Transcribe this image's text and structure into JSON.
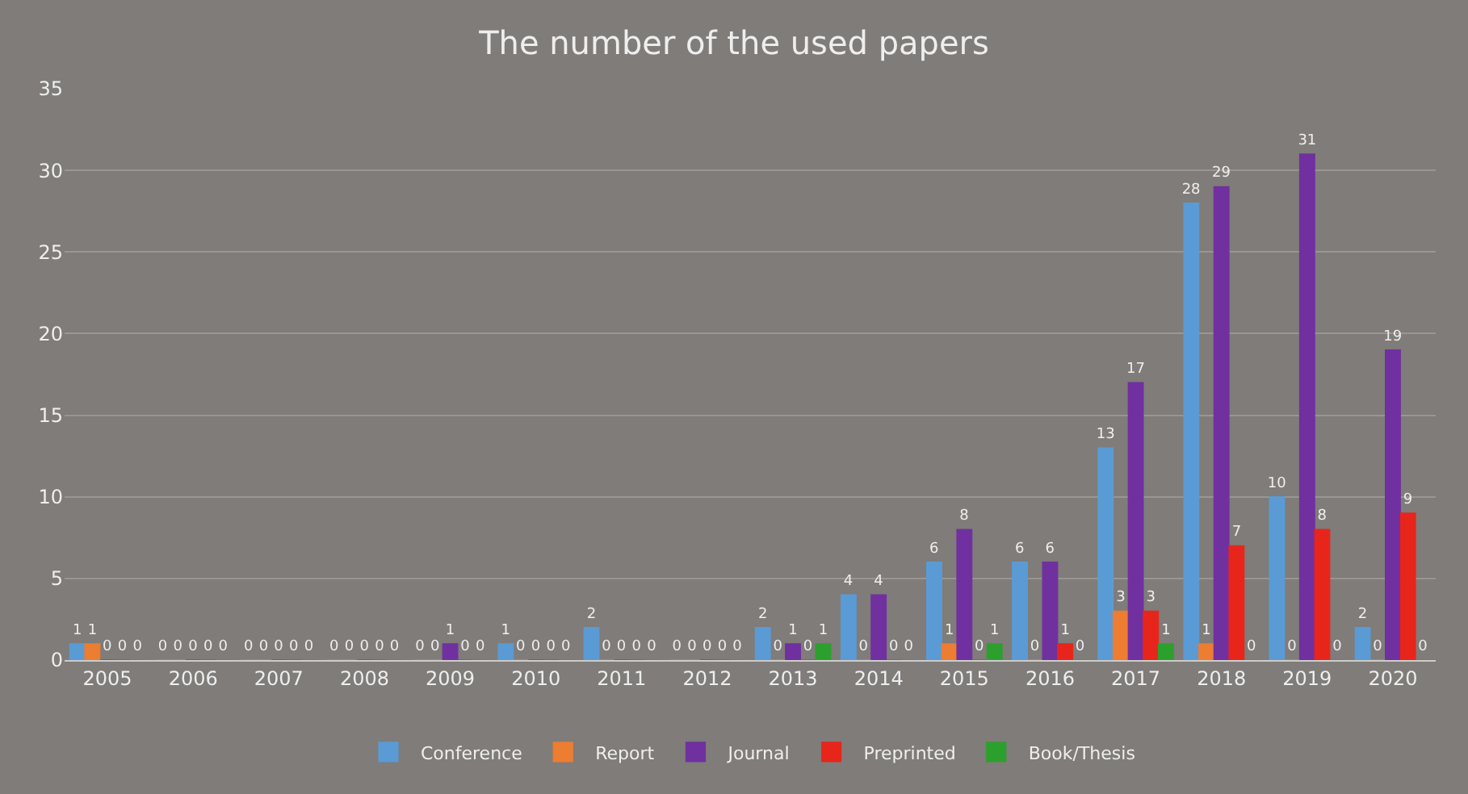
{
  "chart_data": {
    "type": "bar",
    "title": "The number of the used papers",
    "categories": [
      "2005",
      "2006",
      "2007",
      "2008",
      "2009",
      "2010",
      "2011",
      "2012",
      "2013",
      "2014",
      "2015",
      "2016",
      "2017",
      "2018",
      "2019",
      "2020"
    ],
    "series": [
      {
        "name": "Conference",
        "color": "#5b9bd5",
        "values": [
          1,
          0,
          0,
          0,
          0,
          1,
          2,
          0,
          2,
          4,
          6,
          6,
          13,
          28,
          10,
          2
        ]
      },
      {
        "name": "Report",
        "color": "#ed7d31",
        "values": [
          1,
          0,
          0,
          0,
          0,
          0,
          0,
          0,
          0,
          0,
          1,
          0,
          3,
          1,
          0,
          0
        ]
      },
      {
        "name": "Journal",
        "color": "#7030a0",
        "values": [
          0,
          0,
          0,
          0,
          1,
          0,
          0,
          0,
          1,
          4,
          8,
          6,
          17,
          29,
          31,
          19
        ]
      },
      {
        "name": "Preprinted",
        "color": "#e8251b",
        "values": [
          0,
          0,
          0,
          0,
          0,
          0,
          0,
          0,
          0,
          0,
          0,
          1,
          3,
          7,
          8,
          9
        ]
      },
      {
        "name": "Book/Thesis",
        "color": "#2ca02c",
        "values": [
          0,
          0,
          0,
          0,
          0,
          0,
          0,
          0,
          1,
          0,
          1,
          0,
          1,
          0,
          0,
          0
        ]
      }
    ],
    "ylim": [
      0,
      35
    ],
    "yticks": [
      0,
      5,
      10,
      15,
      20,
      25,
      30,
      35
    ],
    "grid": "y",
    "legend": "bottom",
    "data_labels": true
  }
}
